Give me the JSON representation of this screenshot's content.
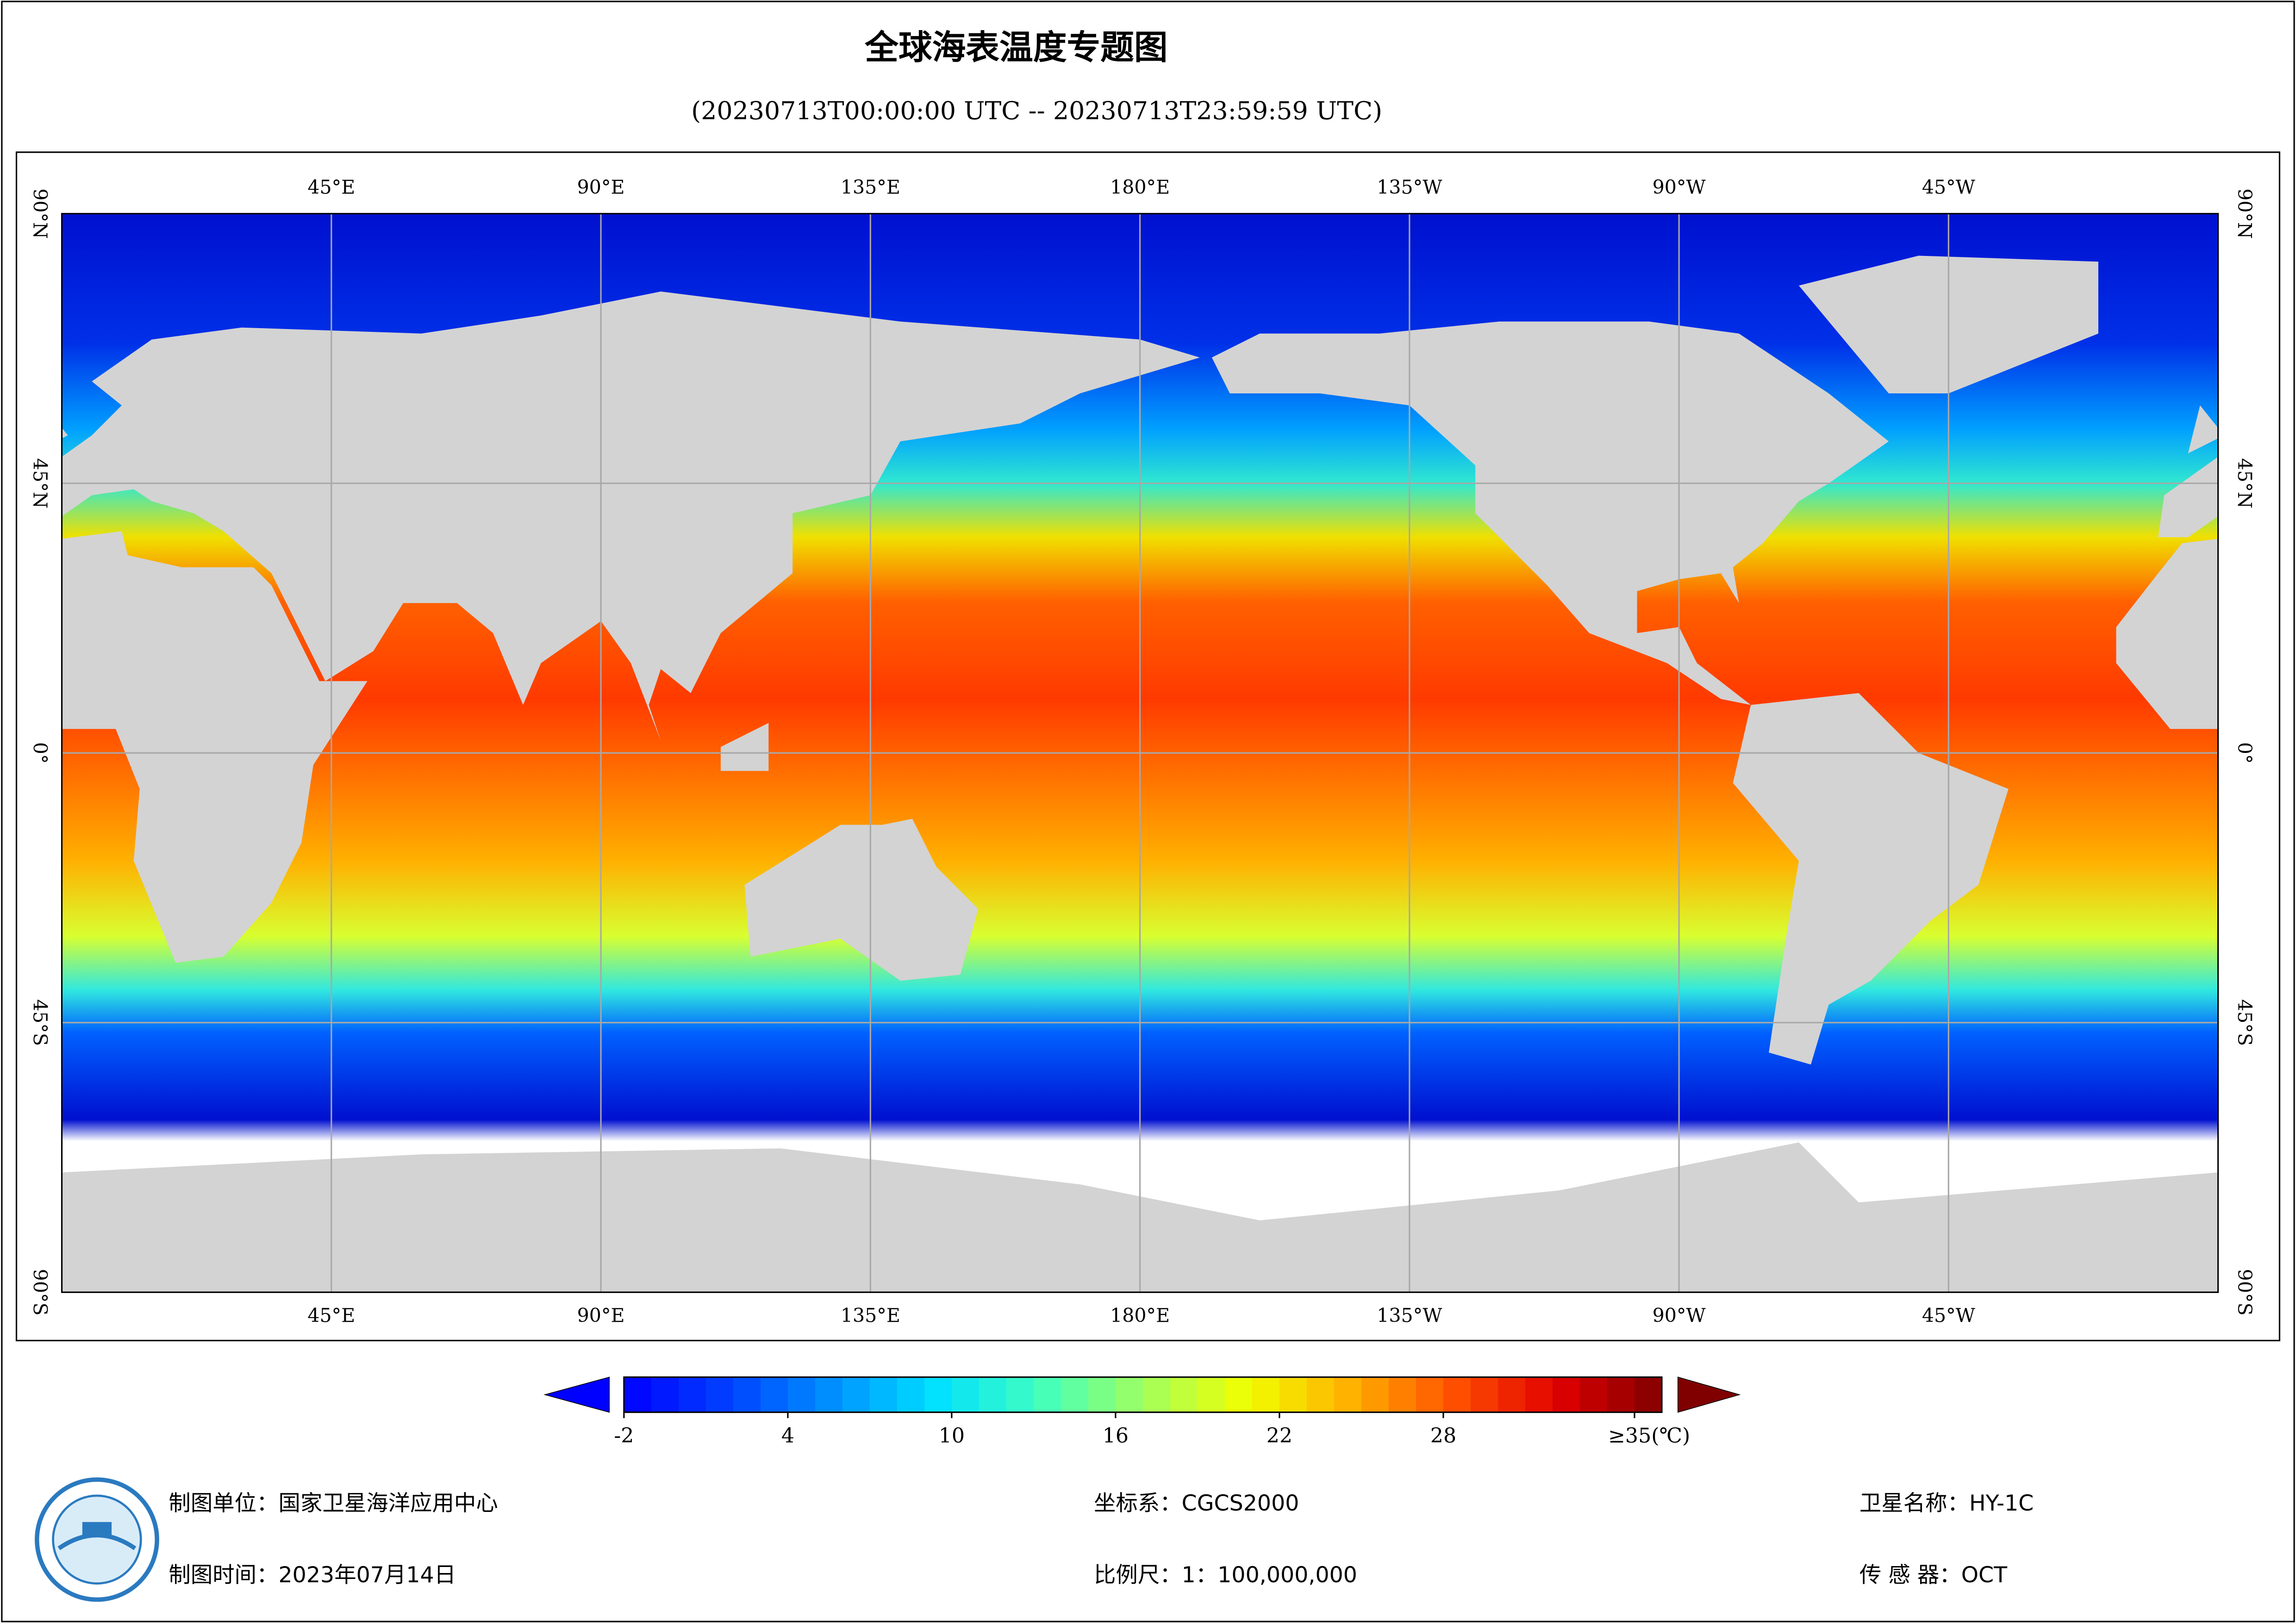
{
  "map": {
    "title": "全球海表温度专题图",
    "subtitle": "(20230713T00:00:00 UTC -- 20230713T23:59:59 UTC)",
    "lonlim": [
      0,
      360
    ],
    "latlim": [
      -90,
      90
    ],
    "lonticks": [
      {
        "value": 45,
        "label": "45°E"
      },
      {
        "value": 90,
        "label": "90°E"
      },
      {
        "value": 135,
        "label": "135°E"
      },
      {
        "value": 180,
        "label": "180°E"
      },
      {
        "value": -135,
        "label": "135°W"
      },
      {
        "value": -90,
        "label": "90°W"
      },
      {
        "value": -45,
        "label": "45°W"
      }
    ],
    "latticks": [
      {
        "value": 90,
        "label": "90°N"
      },
      {
        "value": 45,
        "label": "45°N"
      },
      {
        "value": 0,
        "label": "0°"
      },
      {
        "value": -45,
        "label": "45°S"
      },
      {
        "value": -90,
        "label": "90°S"
      }
    ],
    "grid": true,
    "colorbar": {
      "clim": [
        -2,
        36
      ],
      "ticks": [
        -2,
        4,
        10,
        16,
        22,
        28,
        {
          "value": 35,
          "label": "≥35(℃)"
        }
      ],
      "colors": [
        "#0000ff",
        "#0040ff",
        "#0090ff",
        "#00e0ff",
        "#40ffc0",
        "#a0ff60",
        "#f0ff00",
        "#ffb000",
        "#ff5000",
        "#e00000",
        "#800000"
      ],
      "under_color": "#0000ff",
      "over_color": "#800000"
    },
    "footer": {
      "unit": "制图单位：国家卫星海洋应用中心",
      "time": "制图时间：2023年07月14日",
      "crs": "坐标系：CGCS2000",
      "scale": "比例尺：1：100,000,000",
      "satellite": "卫星名称：HY-1C",
      "sensor": "传 感 器：OCT"
    }
  }
}
